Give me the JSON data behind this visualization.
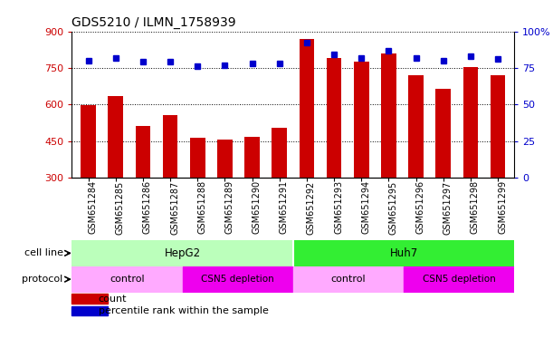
{
  "title": "GDS5210 / ILMN_1758939",
  "samples": [
    "GSM651284",
    "GSM651285",
    "GSM651286",
    "GSM651287",
    "GSM651288",
    "GSM651289",
    "GSM651290",
    "GSM651291",
    "GSM651292",
    "GSM651293",
    "GSM651294",
    "GSM651295",
    "GSM651296",
    "GSM651297",
    "GSM651298",
    "GSM651299"
  ],
  "counts": [
    598,
    635,
    510,
    555,
    462,
    457,
    468,
    505,
    870,
    790,
    775,
    810,
    720,
    665,
    755,
    720
  ],
  "percentile_ranks": [
    80,
    82,
    79,
    79,
    76,
    77,
    78,
    78,
    92,
    84,
    82,
    87,
    82,
    80,
    83,
    81
  ],
  "ylim_left": [
    300,
    900
  ],
  "ylim_right": [
    0,
    100
  ],
  "yticks_left": [
    300,
    450,
    600,
    750,
    900
  ],
  "yticks_right": [
    0,
    25,
    50,
    75,
    100
  ],
  "bar_color": "#cc0000",
  "dot_color": "#0000cc",
  "cell_line_hepg2_color": "#bbffbb",
  "cell_line_huh7_color": "#33ee33",
  "protocol_control_color": "#ffaaff",
  "protocol_csn5dep_color": "#ee00ee",
  "tick_label_fontsize": 7.0,
  "axis_label_color_left": "#cc0000",
  "axis_label_color_right": "#0000cc",
  "bg_color": "#e8e8e8"
}
